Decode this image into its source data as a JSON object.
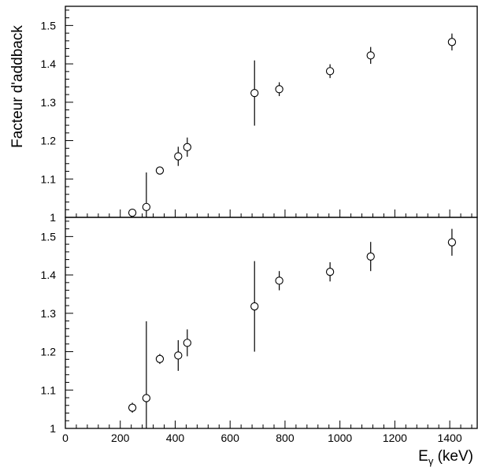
{
  "chart_data": [
    {
      "type": "scatter",
      "panel": "top",
      "title": "",
      "ylabel": "Facteur d'addback",
      "xlabel": "",
      "xlim": [
        0,
        1500
      ],
      "ylim": [
        1.0,
        1.55
      ],
      "y_major_ticks": [
        1,
        1.1,
        1.2,
        1.3,
        1.4,
        1.5
      ],
      "y_tick_labels": [
        "1",
        "1.1",
        "1.2",
        "1.3",
        "1.4",
        "1.5"
      ],
      "grid": false,
      "points": [
        {
          "x": 244,
          "y": 1.012,
          "err": 0.008
        },
        {
          "x": 295,
          "y": 1.027,
          "err": 0.09
        },
        {
          "x": 344,
          "y": 1.122,
          "err": 0.007
        },
        {
          "x": 411,
          "y": 1.159,
          "err": 0.025
        },
        {
          "x": 444,
          "y": 1.183,
          "err": 0.025
        },
        {
          "x": 689,
          "y": 1.324,
          "err": 0.085
        },
        {
          "x": 779,
          "y": 1.334,
          "err": 0.018
        },
        {
          "x": 964,
          "y": 1.381,
          "err": 0.018
        },
        {
          "x": 1112,
          "y": 1.422,
          "err": 0.022
        },
        {
          "x": 1408,
          "y": 1.457,
          "err": 0.022
        }
      ]
    },
    {
      "type": "scatter",
      "panel": "bottom",
      "title": "",
      "ylabel": "",
      "xlabel": "Eγ (keV)",
      "xlim": [
        0,
        1500
      ],
      "ylim": [
        1.0,
        1.55
      ],
      "x_major_ticks": [
        0,
        200,
        400,
        600,
        800,
        1000,
        1200,
        1400
      ],
      "x_tick_labels": [
        "0",
        "200",
        "400",
        "600",
        "800",
        "1000",
        "1200",
        "1400"
      ],
      "y_major_ticks": [
        1,
        1.1,
        1.2,
        1.3,
        1.4,
        1.5
      ],
      "y_tick_labels": [
        "1",
        "1.1",
        "1.2",
        "1.3",
        "1.4",
        "1.5"
      ],
      "grid": false,
      "points": [
        {
          "x": 244,
          "y": 1.054,
          "err": 0.013
        },
        {
          "x": 295,
          "y": 1.079,
          "err": 0.2
        },
        {
          "x": 344,
          "y": 1.181,
          "err": 0.013
        },
        {
          "x": 411,
          "y": 1.19,
          "err": 0.04
        },
        {
          "x": 444,
          "y": 1.223,
          "err": 0.035
        },
        {
          "x": 689,
          "y": 1.318,
          "err": 0.118
        },
        {
          "x": 779,
          "y": 1.385,
          "err": 0.025
        },
        {
          "x": 964,
          "y": 1.408,
          "err": 0.025
        },
        {
          "x": 1112,
          "y": 1.448,
          "err": 0.038
        },
        {
          "x": 1408,
          "y": 1.485,
          "err": 0.035
        }
      ]
    }
  ],
  "labels": {
    "ylabel": "Facteur d'addback",
    "xlabel_main": "E",
    "xlabel_sub": "γ",
    "xlabel_unit": " (keV)"
  }
}
